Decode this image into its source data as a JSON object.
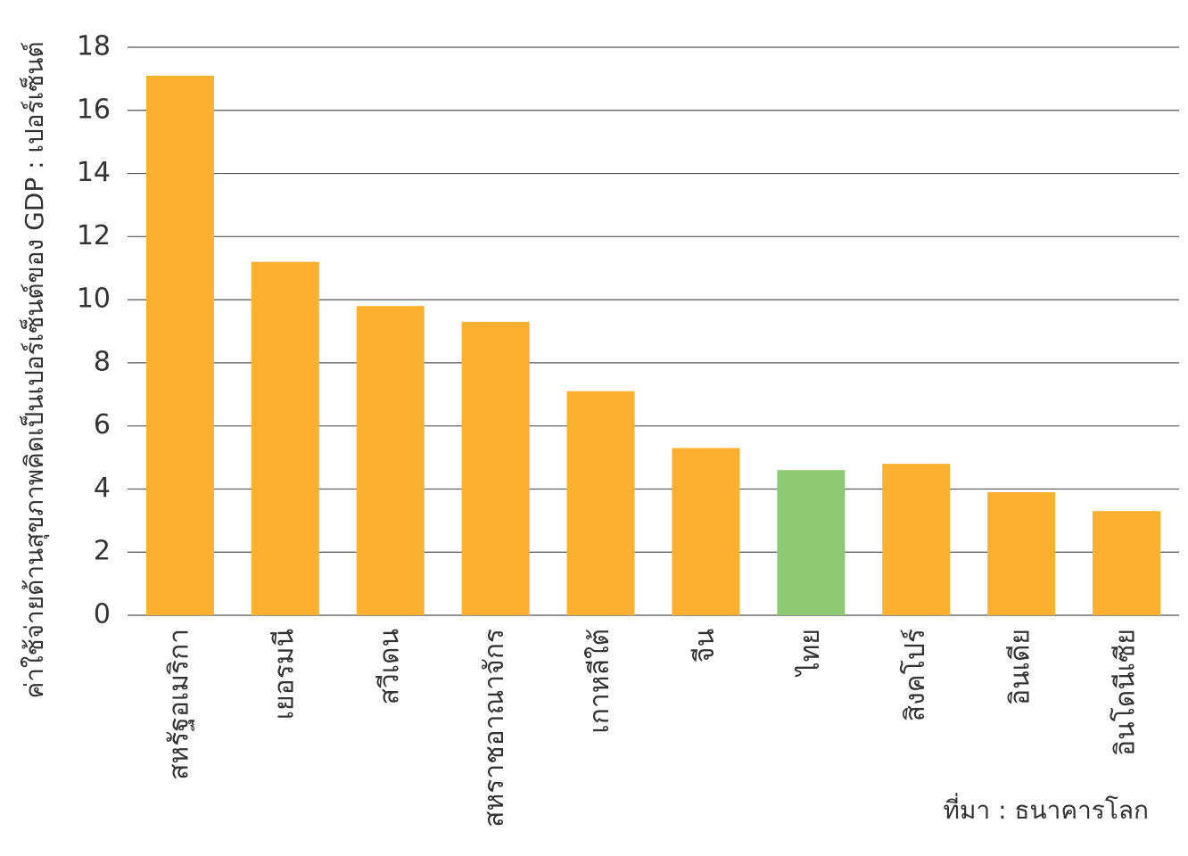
{
  "chart_data": {
    "type": "bar",
    "y_label": "ค่าใช้จ่ายด้านสุขภาพคิดเป็นเปอร์เซ็นต์ของ GDP : เปอร์เซ็นต์",
    "categories": [
      "สหรัฐอเมริกา",
      "เยอรมนี",
      "สวีเดน",
      "สหราชอาณาจักร",
      "เกาหลีใต้",
      "จีน",
      "ไทย",
      "สิงคโปร์",
      "อินเดีย",
      "อินโดนีเซีย"
    ],
    "values": [
      17.1,
      11.2,
      9.8,
      9.3,
      7.1,
      5.3,
      4.6,
      4.8,
      3.9,
      3.3
    ],
    "colors": [
      "#fbb12f",
      "#fbb12f",
      "#fbb12f",
      "#fbb12f",
      "#fbb12f",
      "#fbb12f",
      "#8cc972",
      "#fbb12f",
      "#fbb12f",
      "#fbb12f"
    ],
    "ylim": [
      0,
      18
    ],
    "yticks": [
      0,
      2,
      4,
      6,
      8,
      10,
      12,
      14,
      16,
      18
    ],
    "grid": true,
    "source": "ที่มา : ธนาคารโลก"
  }
}
